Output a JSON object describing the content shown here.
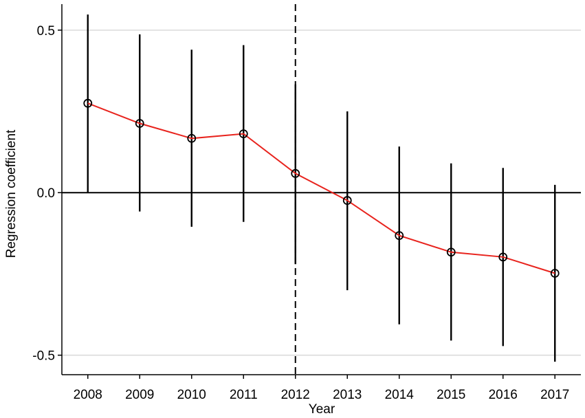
{
  "chart_data": {
    "type": "line",
    "title": "",
    "xlabel": "Year",
    "ylabel": "Regression coefficient",
    "x": [
      2008,
      2009,
      2010,
      2011,
      2012,
      2013,
      2014,
      2015,
      2016,
      2017
    ],
    "x_tick_labels": [
      "2008",
      "2009",
      "2010",
      "2011",
      "2012",
      "2013",
      "2014",
      "2015",
      "2016",
      "2017"
    ],
    "y_ticks": [
      0.5,
      0.0,
      -0.5
    ],
    "y_tick_labels": [
      "0.5",
      "0.0",
      "-0.5"
    ],
    "ylim": [
      -0.56,
      0.58
    ],
    "xlim": [
      2007.5,
      2017.5
    ],
    "series": [
      {
        "values": [
          0.275,
          0.213,
          0.167,
          0.181,
          0.059,
          -0.024,
          -0.132,
          -0.183,
          -0.198,
          -0.248
        ],
        "ci_lower": [
          0.0,
          -0.058,
          -0.105,
          -0.09,
          -0.22,
          -0.3,
          -0.405,
          -0.455,
          -0.472,
          -0.52
        ],
        "ci_upper": [
          0.548,
          0.487,
          0.44,
          0.454,
          0.333,
          0.25,
          0.142,
          0.09,
          0.076,
          0.024
        ]
      }
    ],
    "reference_lines": {
      "horizontal_y": 0.0,
      "vertical_dashed_x": 2012
    },
    "grid": true,
    "colors": {
      "line": "#e8231d",
      "markers": "#000000",
      "error_bars": "#000000",
      "grid": "#d9d9d9"
    }
  }
}
